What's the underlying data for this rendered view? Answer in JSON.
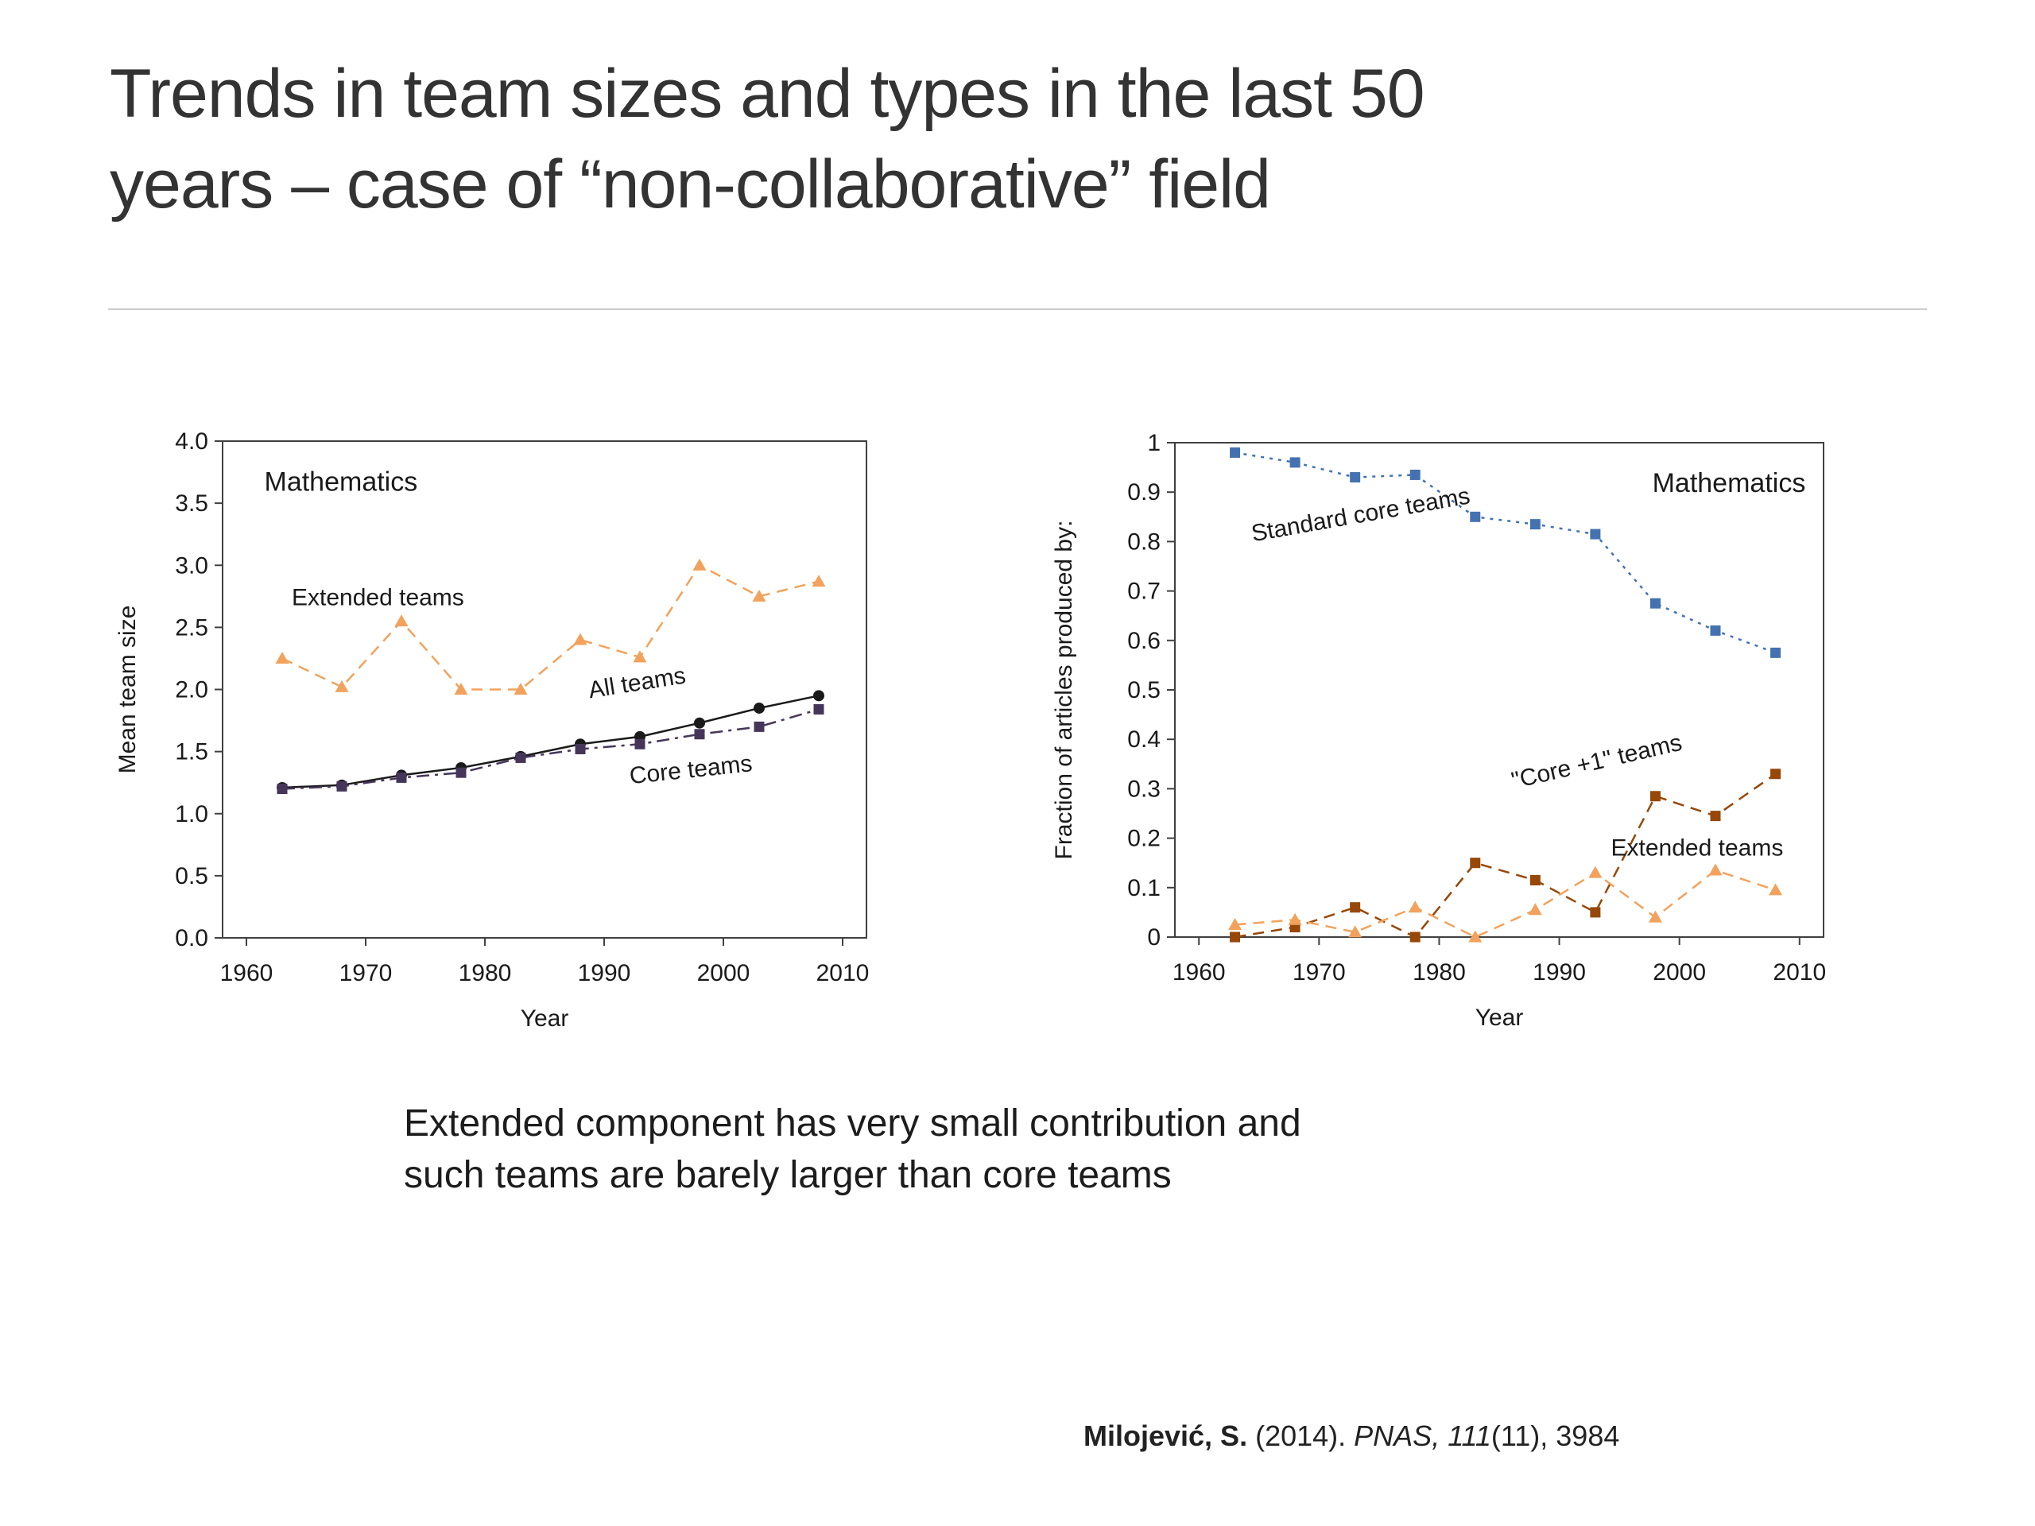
{
  "slide": {
    "title_line1": "Trends in team sizes and types in the last 50",
    "title_line2": "years – case of “non-collaborative” field",
    "note_line1": "Extended component has very small contribution and",
    "note_line2": "such teams are barely larger than core teams",
    "citation": {
      "author": "Milojević, S.",
      "middle": " (2014). ",
      "italic_part": "PNAS, 111",
      "tail": "(11), 3984"
    }
  },
  "colors": {
    "background": "#ffffff",
    "title_text": "#333333",
    "divider": "#cccccc",
    "axis": "#404040",
    "extended_orange": "#F2A25C",
    "all_teams_black": "#1a1a1a",
    "core_purple": "#453659",
    "standard_blue": "#4472B0",
    "core_plus1_brown": "#974706"
  },
  "chart_data": [
    {
      "type": "line",
      "title": "Mathematics",
      "xlabel": "Year",
      "ylabel": "Mean team size",
      "xlim": [
        1958,
        2012
      ],
      "ylim": [
        0,
        4
      ],
      "grid": "off",
      "legend": "none",
      "x_ticks": [
        1960,
        1970,
        1980,
        1990,
        2000,
        2010
      ],
      "x_tick_labels": [
        "1960",
        "1970",
        "1980",
        "1990",
        "2000",
        "2010"
      ],
      "y_ticks": [
        0,
        0.5,
        1,
        1.5,
        2,
        2.5,
        3,
        3.5,
        4
      ],
      "y_tick_labels": [
        "0.0",
        "0.5",
        "1.0",
        "1.5",
        "2.0",
        "2.5",
        "3.0",
        "3.5",
        "4.0"
      ],
      "x": [
        1963,
        1968,
        1973,
        1978,
        1983,
        1988,
        1993,
        1998,
        2003,
        2008
      ],
      "series": [
        {
          "name": "Extended teams",
          "values": [
            2.25,
            2.02,
            2.55,
            2.0,
            2.0,
            2.4,
            2.26,
            3.0,
            2.75,
            2.87
          ],
          "color": "#F2A25C",
          "marker": "triangle",
          "line": "dashed"
        },
        {
          "name": "All teams",
          "values": [
            1.21,
            1.23,
            1.31,
            1.37,
            1.46,
            1.56,
            1.62,
            1.73,
            1.85,
            1.95
          ],
          "color": "#1a1a1a",
          "marker": "circle",
          "line": "solid"
        },
        {
          "name": "Core teams",
          "values": [
            1.2,
            1.22,
            1.29,
            1.33,
            1.45,
            1.52,
            1.56,
            1.64,
            1.7,
            1.84
          ],
          "color": "#453659",
          "marker": "square",
          "line": "dashdot"
        }
      ],
      "annotations": [
        {
          "text": "Mathematics",
          "x": 1961.5,
          "y": 3.6,
          "rotate": 0,
          "anchor": "start",
          "size": 34
        },
        {
          "text": "Extended teams",
          "x": 1963.8,
          "y": 2.68,
          "rotate": 0,
          "anchor": "start",
          "size": 30
        },
        {
          "text": "All teams",
          "x": 1988.8,
          "y": 1.93,
          "rotate": -9,
          "anchor": "start",
          "size": 30
        },
        {
          "text": "Core teams",
          "x": 1992.2,
          "y": 1.24,
          "rotate": -6,
          "anchor": "start",
          "size": 30
        }
      ]
    },
    {
      "type": "line",
      "title": "Mathematics",
      "xlabel": "Year",
      "ylabel": "Fraction of articles produced by:",
      "xlim": [
        1958,
        2012
      ],
      "ylim": [
        0,
        1
      ],
      "grid": "off",
      "legend": "none",
      "x_ticks": [
        1960,
        1970,
        1980,
        1990,
        2000,
        2010
      ],
      "x_tick_labels": [
        "1960",
        "1970",
        "1980",
        "1990",
        "2000",
        "2010"
      ],
      "y_ticks": [
        0,
        0.1,
        0.2,
        0.3,
        0.4,
        0.5,
        0.6,
        0.7,
        0.8,
        0.9,
        1
      ],
      "y_tick_labels": [
        "0",
        "0.1",
        "0.2",
        "0.3",
        "0.4",
        "0.5",
        "0.6",
        "0.7",
        "0.8",
        "0.9",
        "1"
      ],
      "x": [
        1963,
        1968,
        1973,
        1978,
        1983,
        1988,
        1993,
        1998,
        2003,
        2008
      ],
      "series": [
        {
          "name": "Standard core teams",
          "values": [
            0.98,
            0.96,
            0.93,
            0.935,
            0.85,
            0.835,
            0.815,
            0.675,
            0.62,
            0.575
          ],
          "color": "#4472B0",
          "marker": "square",
          "line": "dotted"
        },
        {
          "name": "\"Core +1\" teams",
          "values": [
            0.0,
            0.02,
            0.06,
            0.0,
            0.15,
            0.115,
            0.05,
            0.285,
            0.245,
            0.33
          ],
          "color": "#974706",
          "marker": "square",
          "line": "dashed"
        },
        {
          "name": "Extended teams",
          "values": [
            0.025,
            0.035,
            0.01,
            0.06,
            0.0,
            0.055,
            0.13,
            0.04,
            0.135,
            0.095
          ],
          "color": "#F2A25C",
          "marker": "triangle",
          "line": "dashed"
        }
      ],
      "annotations": [
        {
          "text": "Mathematics",
          "x": 2010.5,
          "y": 0.9,
          "rotate": 0,
          "anchor": "end",
          "size": 34
        },
        {
          "text": "Standard core teams",
          "x": 1964.5,
          "y": 0.8,
          "rotate": -10,
          "anchor": "start",
          "size": 30
        },
        {
          "text": "\"Core +1\" teams",
          "x": 1986.2,
          "y": 0.3,
          "rotate": -13,
          "anchor": "start",
          "size": 30
        },
        {
          "text": "Extended teams",
          "x": 1994.3,
          "y": 0.165,
          "rotate": 0,
          "anchor": "start",
          "size": 30
        }
      ]
    }
  ]
}
